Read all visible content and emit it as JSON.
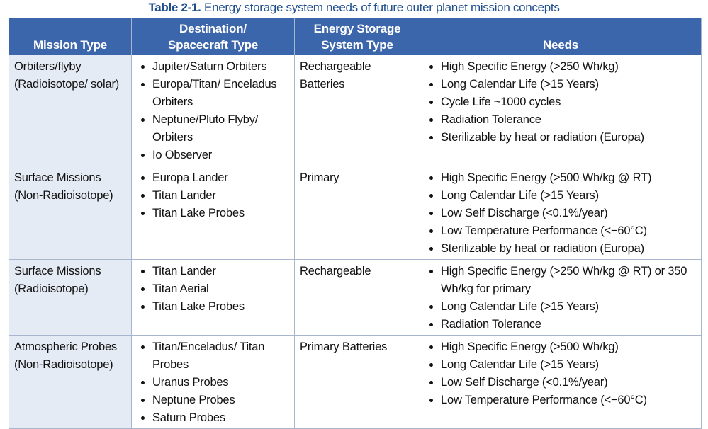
{
  "caption": {
    "label": "Table 2-1.",
    "text": "Energy storage system needs of future outer planet mission concepts"
  },
  "table": {
    "headers": [
      [
        "Mission Type"
      ],
      [
        "Destination/",
        "Spacecraft Type"
      ],
      [
        "Energy Storage",
        "System Type"
      ],
      [
        "Needs"
      ]
    ],
    "rows": [
      {
        "mission": [
          "Orbiters/flyby",
          "(Radioisotope/ solar)"
        ],
        "destinations": [
          "Jupiter/Saturn Orbiters",
          "Europa/Titan/ Enceladus Orbiters",
          "Neptune/Pluto Flyby/ Orbiters",
          "Io Observer"
        ],
        "storage": [
          "Rechargeable",
          "Batteries"
        ],
        "needs": [
          "High Specific Energy (>250 Wh/kg)",
          "Long Calendar Life (>15 Years)",
          "Cycle Life ~1000 cycles",
          "Radiation Tolerance",
          "Sterilizable by heat or radiation (Europa)"
        ]
      },
      {
        "mission": [
          "Surface Missions",
          "(Non-Radioisotope)"
        ],
        "destinations": [
          "Europa Lander",
          "Titan Lander",
          "Titan Lake Probes"
        ],
        "storage": [
          "Primary"
        ],
        "needs": [
          "High Specific Energy (>500 Wh/kg @ RT)",
          "Long Calendar Life (>15 Years)",
          "Low Self Discharge (<0.1%/year)",
          "Low Temperature Performance (<−60°C)",
          "Sterilizable by heat or radiation (Europa)"
        ]
      },
      {
        "mission": [
          "Surface Missions",
          "(Radioisotope)"
        ],
        "destinations": [
          "Titan Lander",
          "Titan Aerial",
          "Titan Lake Probes"
        ],
        "storage": [
          "Rechargeable"
        ],
        "needs": [
          "High Specific Energy (>250 Wh/kg @ RT) or 350 Wh/kg for primary",
          "Long Calendar Life (>15 Years)",
          "Radiation Tolerance"
        ]
      },
      {
        "mission": [
          "Atmospheric Probes",
          "(Non-Radioisotope)"
        ],
        "destinations": [
          "Titan/Enceladus/ Titan Probes",
          "Uranus Probes",
          "Neptune Probes",
          "Saturn Probes"
        ],
        "storage": [
          "Primary Batteries"
        ],
        "needs": [
          "High Specific Energy (>500 Wh/kg)",
          "Long Calendar Life (>15 Years)",
          "Low Self Discharge (<0.1%/year)",
          "Low Temperature Performance (<−60°C)"
        ]
      }
    ]
  }
}
